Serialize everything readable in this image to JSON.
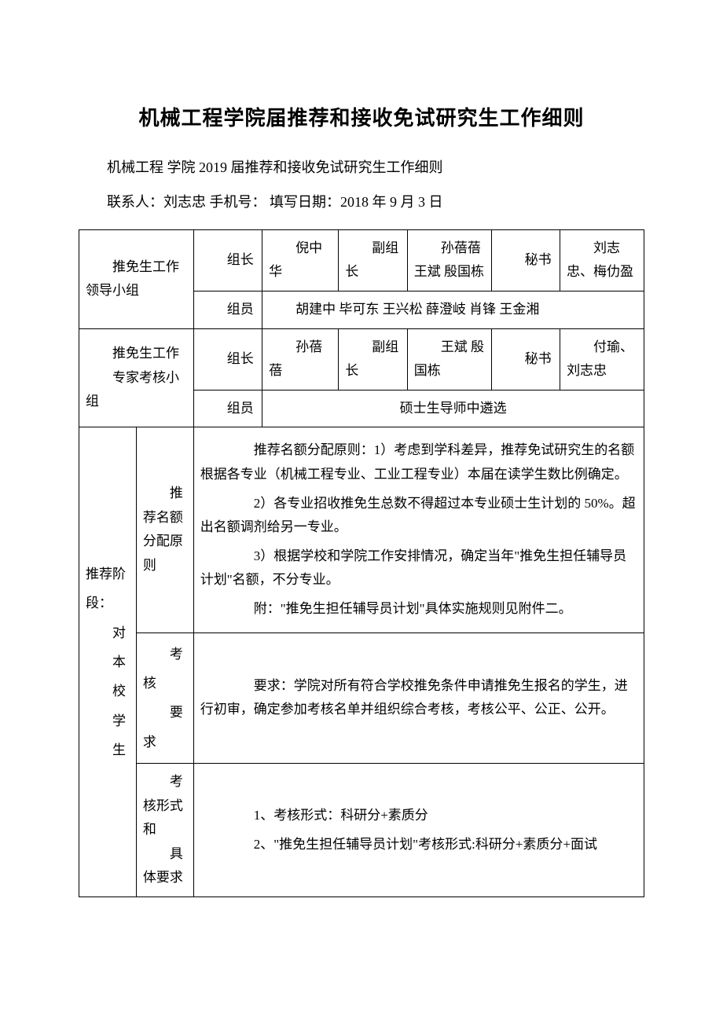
{
  "title": "机械工程学院届推荐和接收免试研究生工作细则",
  "subline1": "机械工程 学院 2019 届推荐和接收免试研究生工作细则",
  "subline2": "联系人：刘志忠 手机号：  填写日期：2018 年 9 月 3 日",
  "group1": {
    "label": "　　推免生工作领导小组",
    "row1": {
      "c1": "　　组长",
      "c2": "　　倪中华",
      "c3": "　　副组长",
      "c4": "　　孙蓓蓓 王斌 殷国栋",
      "c5": "　　秘书",
      "c6": "　　刘志忠、梅仂盈"
    },
    "row2": {
      "c1": "　　组员",
      "c2": "　　胡建中 毕可东 王兴松 薛澄岐 肖锋 王金湘"
    }
  },
  "group2": {
    "label": "　　推免生工作\n　　专家考核小组",
    "row1": {
      "c1": "　　组长",
      "c2": "　　孙蓓蓓",
      "c3": "　　副组长",
      "c4": "　　王斌 殷国栋",
      "c5": "　　秘书",
      "c6": "　　付瑜、刘志忠"
    },
    "row2": {
      "c1": "　　组员",
      "c2": "硕士生导师中遴选"
    }
  },
  "stage": {
    "label": "推荐阶段：\n　　对\n　　本\n　　校\n　　学\n　　生",
    "sec1": {
      "label": "　　推荐名额分配原则",
      "p1": "　　推荐名额分配原则：1）考虑到学科差异，推荐免试研究生的名额根据各专业（机械工程专业、工业工程专业）本届在读学生数比例确定。",
      "p2": "　　2）各专业招收推免生总数不得超过本专业硕士生计划的 50%。超出名额调剂给另一专业。",
      "p3": "　　3）根据学校和学院工作安排情况，确定当年\"推免生担任辅导员计划\"名额，不分专业。",
      "p4": "　　附：\"推免生担任辅导员计划\"具体实施规则见附件二。"
    },
    "sec2": {
      "label": "　　考核\n　　要求",
      "p1": "　　要求：学院对所有符合学校推免条件申请推免生报名的学生，进行初审，确定参加考核名单并组织综合考核，考核公平、公正、公开。"
    },
    "sec3": {
      "label": "　　考核形式和\n　　具体要求",
      "p1": "　　1、考核形式：科研分+素质分",
      "p2": "　　2、\"推免生担任辅导员计划\"考核形式:科研分+素质分+面试"
    }
  }
}
